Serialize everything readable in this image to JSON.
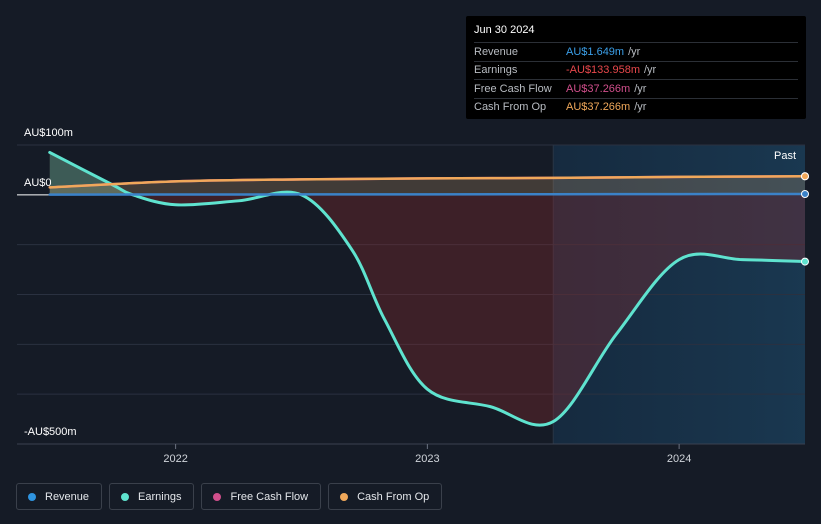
{
  "tooltip": {
    "date": "Jun 30 2024",
    "rows": [
      {
        "label": "Revenue",
        "value": "AU$1.649m",
        "unit": "/yr",
        "color": "#3b9fe8"
      },
      {
        "label": "Earnings",
        "value": "-AU$133.958m",
        "unit": "/yr",
        "color": "#e8474b"
      },
      {
        "label": "Free Cash Flow",
        "value": "AU$37.266m",
        "unit": "/yr",
        "color": "#d14f8c"
      },
      {
        "label": "Cash From Op",
        "value": "AU$37.266m",
        "unit": "/yr",
        "color": "#f0a85a"
      }
    ]
  },
  "past_label": "Past",
  "legend": [
    {
      "label": "Revenue",
      "color": "#2f94e0"
    },
    {
      "label": "Earnings",
      "color": "#5fe3cf"
    },
    {
      "label": "Free Cash Flow",
      "color": "#d14f8c"
    },
    {
      "label": "Cash From Op",
      "color": "#f0a85a"
    }
  ],
  "chart_data": {
    "type": "line",
    "y_ticks": [
      {
        "value": 100,
        "label": "AU$100m"
      },
      {
        "value": 0,
        "label": "AU$0"
      },
      {
        "value": -500,
        "label": "-AU$500m"
      }
    ],
    "x_ticks": [
      {
        "value": 2022.0,
        "label": "2022"
      },
      {
        "value": 2023.0,
        "label": "2023"
      },
      {
        "value": 2024.0,
        "label": "2024"
      }
    ],
    "xlim": [
      2021.37,
      2024.5
    ],
    "ylim": [
      -500,
      100
    ],
    "past_start": 2023.5,
    "series": [
      {
        "name": "Revenue",
        "color": "#3b82c8",
        "points": [
          [
            2021.5,
            0.5
          ],
          [
            2022.0,
            0.6
          ],
          [
            2022.5,
            0.8
          ],
          [
            2023.0,
            1.0
          ],
          [
            2023.5,
            1.2
          ],
          [
            2024.0,
            1.5
          ],
          [
            2024.5,
            1.649
          ]
        ]
      },
      {
        "name": "Earnings",
        "color": "#5fe3cf",
        "points": [
          [
            2021.5,
            85
          ],
          [
            2021.75,
            20
          ],
          [
            2021.83,
            0
          ],
          [
            2022.0,
            -20
          ],
          [
            2022.25,
            -12
          ],
          [
            2022.5,
            0
          ],
          [
            2022.7,
            -110
          ],
          [
            2022.83,
            -250
          ],
          [
            2023.0,
            -390
          ],
          [
            2023.25,
            -425
          ],
          [
            2023.5,
            -455
          ],
          [
            2023.75,
            -280
          ],
          [
            2024.0,
            -130
          ],
          [
            2024.25,
            -130
          ],
          [
            2024.5,
            -133.958
          ]
        ]
      },
      {
        "name": "Free Cash Flow",
        "color": "#d14f8c",
        "points": [
          [
            2021.5,
            15
          ],
          [
            2022.0,
            27
          ],
          [
            2022.5,
            31
          ],
          [
            2023.0,
            33
          ],
          [
            2023.5,
            34
          ],
          [
            2024.0,
            36
          ],
          [
            2024.5,
            37.266
          ]
        ]
      },
      {
        "name": "Cash From Op",
        "color": "#f0a85a",
        "points": [
          [
            2021.5,
            15
          ],
          [
            2022.0,
            27
          ],
          [
            2022.5,
            31
          ],
          [
            2023.0,
            33
          ],
          [
            2023.5,
            34
          ],
          [
            2024.0,
            36
          ],
          [
            2024.5,
            37.266
          ]
        ]
      }
    ]
  }
}
